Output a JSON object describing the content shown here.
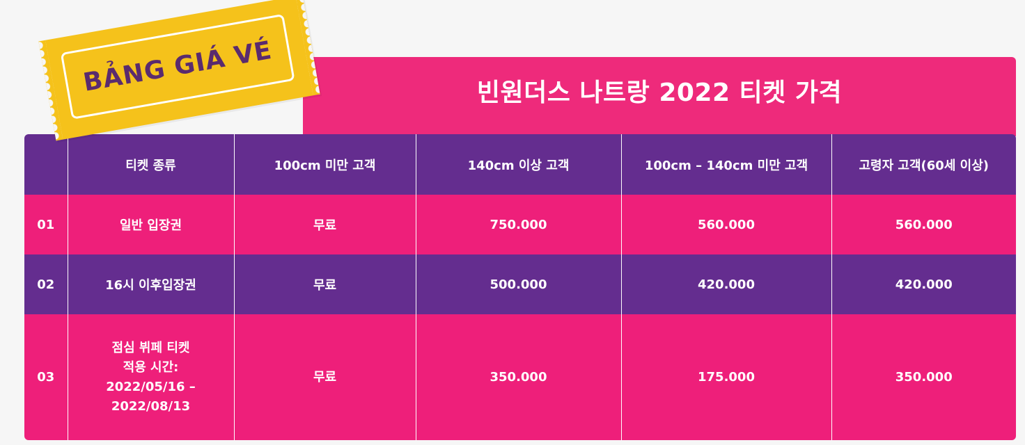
{
  "badge": {
    "text": "BẢNG GIÁ VÉ"
  },
  "title": "빈원더스 나트랑 2022 티켓 가격",
  "colors": {
    "pink": "#ee1f7a",
    "purple": "#642d8f",
    "ticket_yellow": "#f5c21b",
    "ticket_text": "#5a2b6e"
  },
  "table": {
    "headers": [
      "",
      "티켓 종류",
      "100cm 미만 고객",
      "140cm 이상 고객",
      "100cm – 140cm 미만 고객",
      "고령자 고객(60세 이상)"
    ],
    "rows": [
      {
        "no": "01",
        "type_lines": [
          "일반 입장권"
        ],
        "under100": "무료",
        "over140": "750.000",
        "between": "560.000",
        "senior": "560.000"
      },
      {
        "no": "02",
        "type_lines": [
          "16시 이후입장권"
        ],
        "under100": "무료",
        "over140": "500.000",
        "between": "420.000",
        "senior": "420.000"
      },
      {
        "no": "03",
        "type_lines": [
          "점심 뷔페 티켓",
          "적용 시간:",
          "2022/05/16 –",
          "2022/08/13"
        ],
        "under100": "무료",
        "over140": "350.000",
        "between": "175.000",
        "senior": "350.000"
      }
    ]
  }
}
